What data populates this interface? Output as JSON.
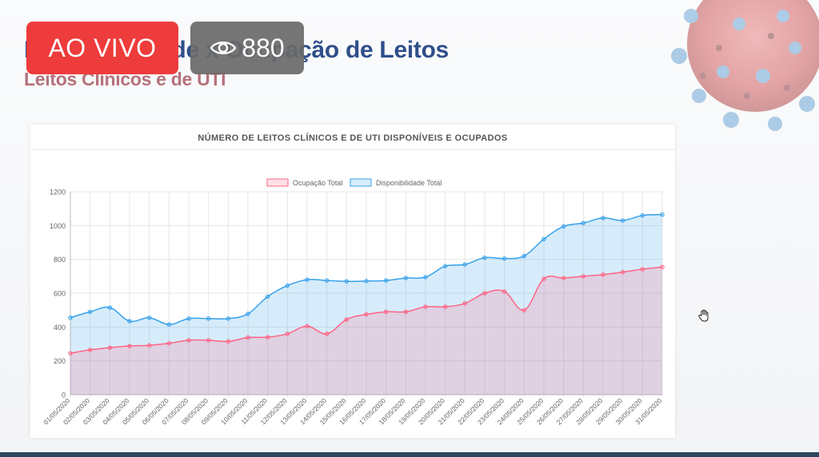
{
  "slide": {
    "title": "Disponibilidade x Ocupação de Leitos",
    "subtitle": "Leitos Clínicos e de UTI"
  },
  "overlay": {
    "live_label": "AO VIVO",
    "viewer_count": "880",
    "live_color": "#ee3b3b"
  },
  "icons": {
    "viewers": "eye-icon",
    "cursor": "hand-cursor-icon",
    "background": "virus-icon"
  },
  "chart_data": {
    "type": "area",
    "title": "NÚMERO DE LEITOS CLÍNICOS E DE UTI DISPONÍVEIS E OCUPADOS",
    "legend_position": "top",
    "grid": true,
    "ylim": [
      0,
      1200
    ],
    "yticks": [
      0,
      200,
      400,
      600,
      800,
      1000,
      1200
    ],
    "categories": [
      "01/05/2020",
      "02/05/2020",
      "03/05/2020",
      "04/05/2020",
      "05/05/2020",
      "06/05/2020",
      "07/05/2020",
      "08/05/2020",
      "09/05/2020",
      "10/05/2020",
      "11/05/2020",
      "12/05/2020",
      "13/05/2020",
      "14/05/2020",
      "15/05/2020",
      "16/05/2020",
      "17/05/2020",
      "18/05/2020",
      "19/05/2020",
      "20/05/2020",
      "21/05/2020",
      "22/05/2020",
      "23/05/2020",
      "24/05/2020",
      "25/05/2020",
      "26/05/2020",
      "27/05/2020",
      "28/05/2020",
      "29/05/2020",
      "30/05/2020",
      "31/05/2020"
    ],
    "series": [
      {
        "name": "Ocupação Total",
        "color": "#ff6384",
        "fill": "rgba(255,99,132,0.2)",
        "values": [
          245,
          265,
          278,
          288,
          292,
          304,
          322,
          322,
          315,
          338,
          340,
          360,
          405,
          360,
          445,
          475,
          490,
          490,
          520,
          520,
          540,
          600,
          610,
          500,
          685,
          690,
          700,
          710,
          725,
          742,
          755
        ]
      },
      {
        "name": "Disponibilidade Total",
        "color": "#36a2eb",
        "fill": "rgba(54,162,235,0.2)",
        "values": [
          455,
          490,
          515,
          435,
          455,
          415,
          450,
          450,
          450,
          478,
          580,
          645,
          680,
          675,
          670,
          672,
          675,
          690,
          695,
          760,
          770,
          810,
          805,
          820,
          920,
          995,
          1015,
          1045,
          1030,
          1060,
          1065
        ]
      }
    ]
  }
}
